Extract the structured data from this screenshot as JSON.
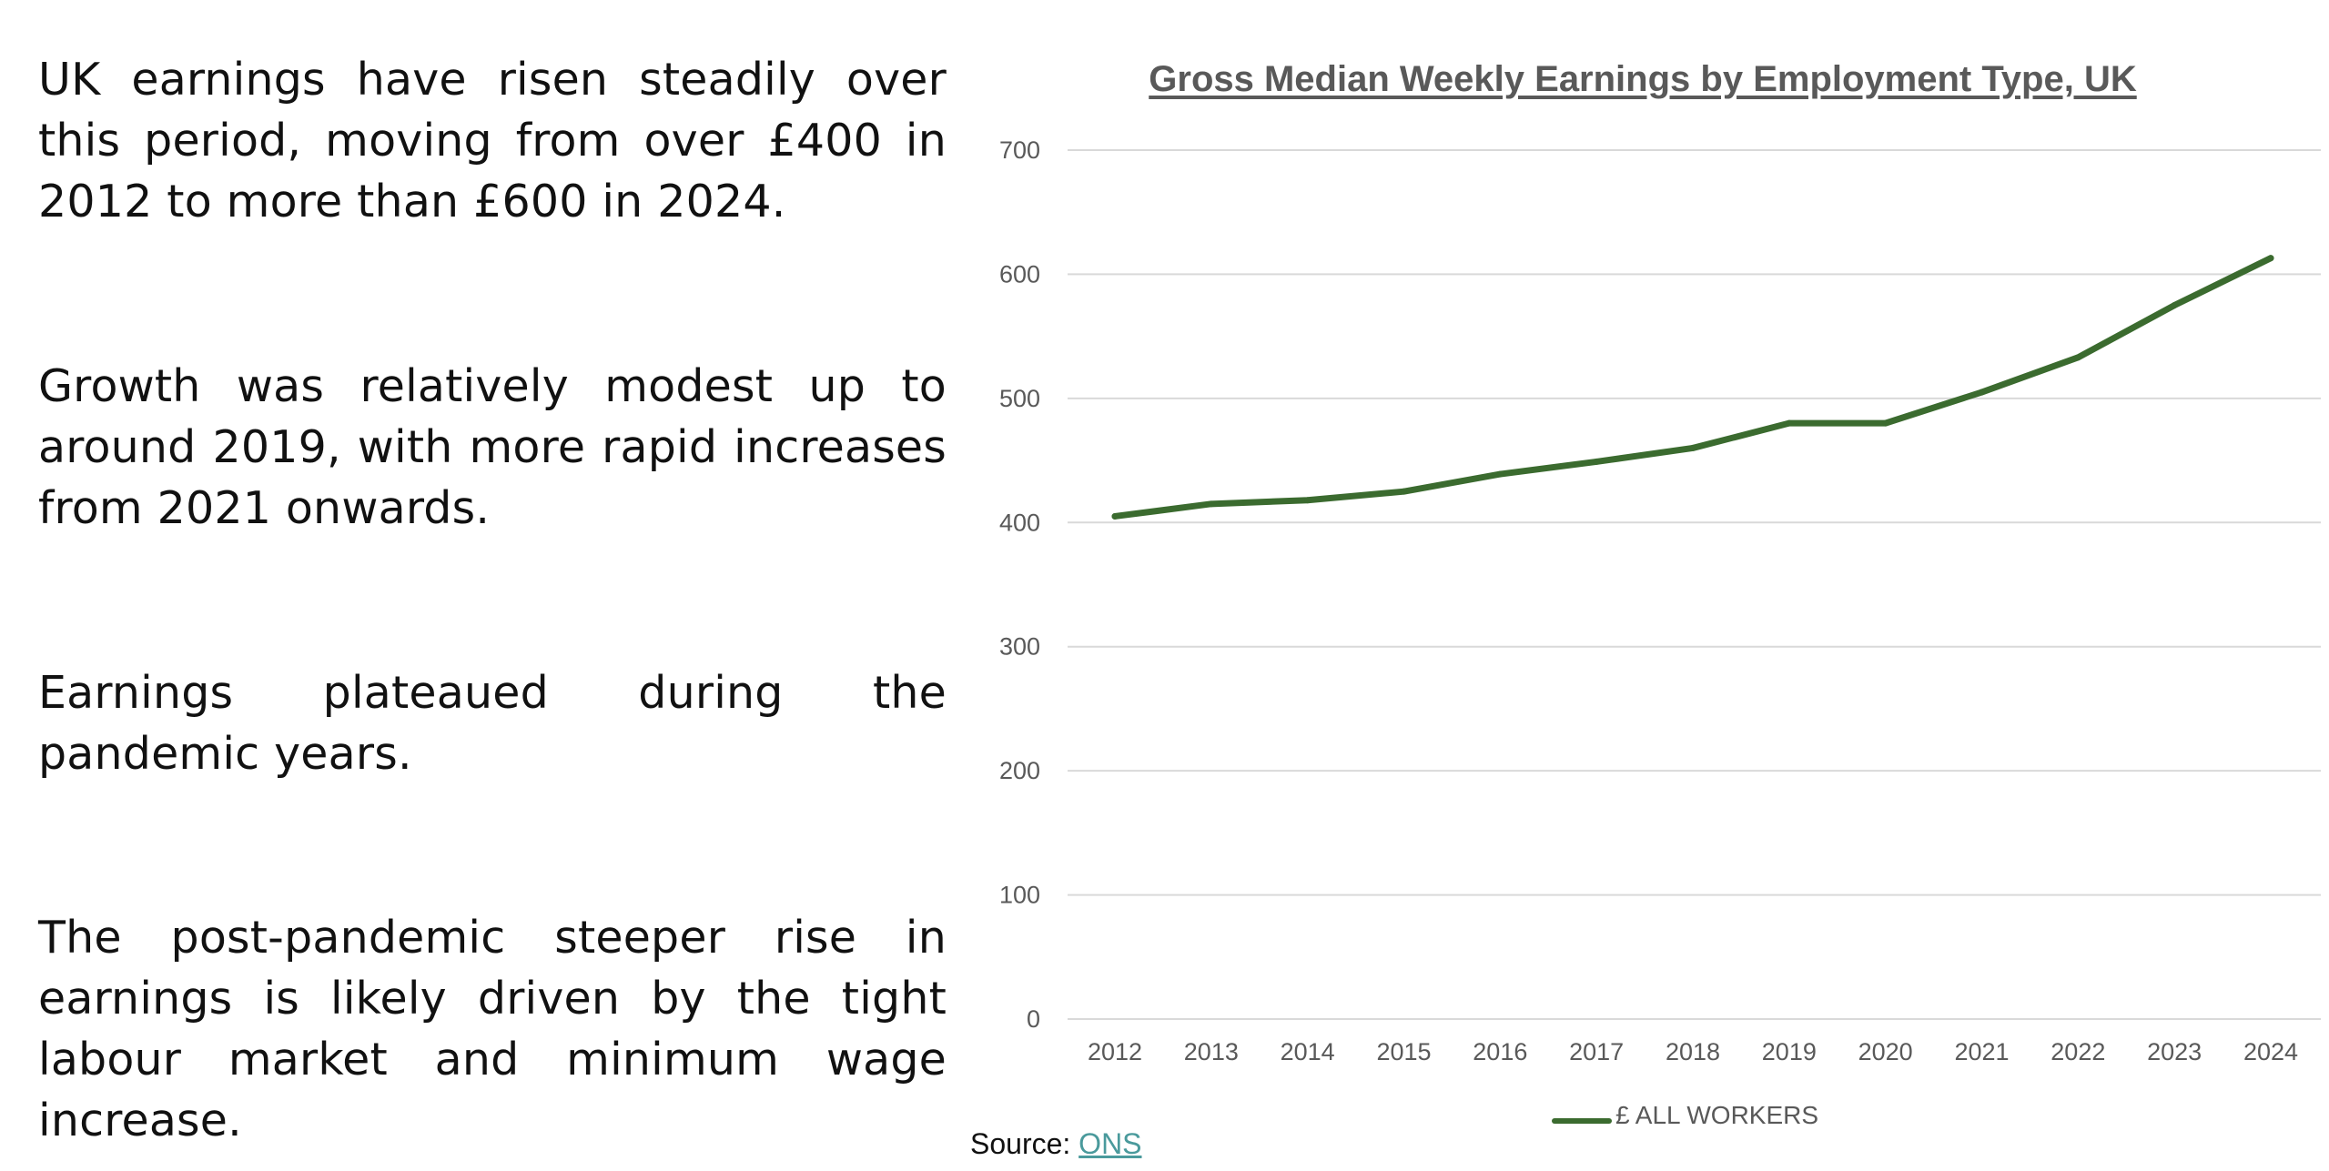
{
  "text_panel": {
    "paragraphs": [
      "UK earnings have risen steadily over this period, moving from over £400 in 2012 to more than £600 in 2024.",
      "Growth was relatively modest up to around 2019, with more rapid increases from 2021 onwards.",
      "Earnings plateaued during the pandemic years.",
      "The post-pandemic steeper rise in earnings is likely driven by the tight labour market and minimum wage increase."
    ]
  },
  "source": {
    "label": "Source: ",
    "link_text": "ONS"
  },
  "colors": {
    "series_line": "#3b6b2f",
    "gridline": "#d9d9d9",
    "axis_text": "#595959",
    "link": "#4a9a9c"
  },
  "chart_data": {
    "type": "line",
    "title": "Gross Median Weekly Earnings by Employment Type, UK",
    "xlabel": "",
    "ylabel": "",
    "categories": [
      "2012",
      "2013",
      "2014",
      "2015",
      "2016",
      "2017",
      "2018",
      "2019",
      "2020",
      "2021",
      "2022",
      "2023",
      "2024"
    ],
    "series": [
      {
        "name": "£ ALL WORKERS",
        "values": [
          405,
          415,
          418,
          425,
          439,
          449,
          460,
          480,
          480,
          505,
          533,
          575,
          613
        ]
      }
    ],
    "y_ticks": [
      0,
      100,
      200,
      300,
      400,
      500,
      600,
      700
    ],
    "ylim": [
      0,
      700
    ],
    "grid": true,
    "legend_position": "bottom"
  }
}
